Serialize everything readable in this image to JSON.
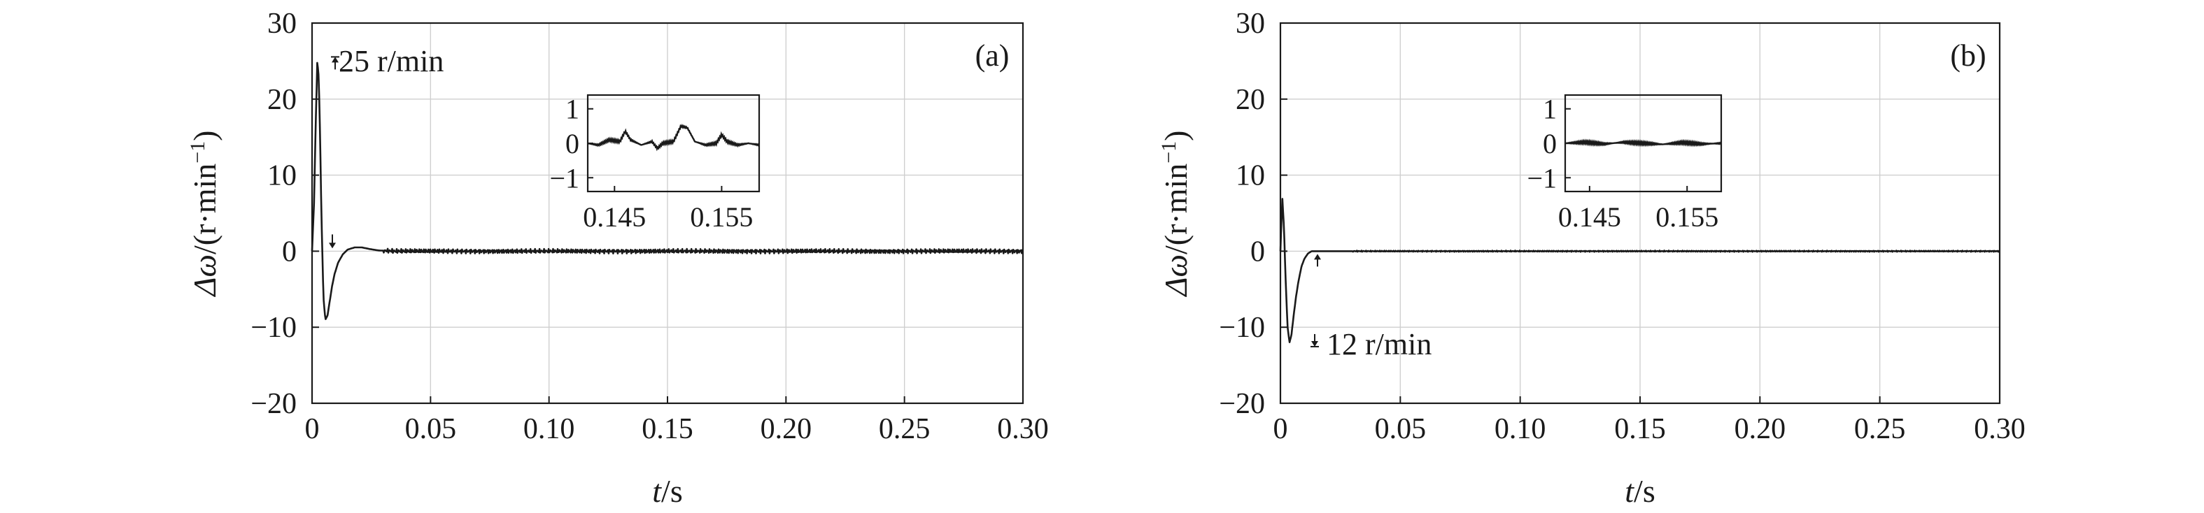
{
  "chart_data": [
    {
      "type": "line",
      "panel_label": "(a)",
      "xlabel_italic": "t",
      "xlabel_unit": "/s",
      "ylabel_symbol": "Δω",
      "ylabel_unit": "/(r·min",
      "ylabel_sup": "−1",
      "ylabel_close": ")",
      "xlim": [
        0,
        0.3
      ],
      "ylim": [
        -20,
        30
      ],
      "x_ticks": [
        "0",
        "0.05",
        "0.10",
        "0.15",
        "0.20",
        "0.25",
        "0.30"
      ],
      "y_ticks": [
        "30",
        "20",
        "10",
        "0",
        "−10",
        "−20"
      ],
      "grid": true,
      "annotation": "25 r/min",
      "series": [
        {
          "x": [
            0,
            0.0008,
            0.0015,
            0.0022,
            0.0028,
            0.0034,
            0.004,
            0.0048,
            0.0056,
            0.0065,
            0.0075,
            0.0085,
            0.0095,
            0.011,
            0.013,
            0.015,
            0.018,
            0.021,
            0.024,
            0.028,
            0.035,
            0.3
          ],
          "y": [
            0,
            6,
            16,
            25,
            23,
            15,
            4,
            -6,
            -9,
            -8.5,
            -6.5,
            -4.5,
            -3,
            -1.5,
            -0.4,
            0.2,
            0.5,
            0.5,
            0.3,
            0.1,
            0,
            0
          ],
          "ripple": 0.3
        }
      ],
      "inset": {
        "xlim": [
          0.1425,
          0.1585
        ],
        "ylim": [
          -1.4,
          1.4
        ],
        "x_ticks": [
          "0.145",
          "0.155"
        ],
        "y_ticks": [
          "1",
          "0",
          "−1"
        ],
        "series": [
          {
            "x": [
              0.1425,
              0.1435,
              0.1445,
              0.1455,
              0.146,
              0.1465,
              0.1475,
              0.1485,
              0.149,
              0.1495,
              0.1505,
              0.1512,
              0.1518,
              0.1525,
              0.1535,
              0.1545,
              0.155,
              0.1555,
              0.1565,
              0.1575,
              0.1585
            ],
            "y": [
              0,
              -0.05,
              0.1,
              0.05,
              0.35,
              0.1,
              -0.05,
              0.05,
              -0.15,
              0.0,
              0.05,
              0.5,
              0.45,
              0.05,
              -0.05,
              0.0,
              0.25,
              0.05,
              -0.05,
              0.0,
              -0.05
            ]
          }
        ]
      }
    },
    {
      "type": "line",
      "panel_label": "(b)",
      "xlabel_italic": "t",
      "xlabel_unit": "/s",
      "ylabel_symbol": "Δω",
      "ylabel_unit": "/(r·min",
      "ylabel_sup": "−1",
      "ylabel_close": ")",
      "xlim": [
        0,
        0.3
      ],
      "ylim": [
        -20,
        30
      ],
      "x_ticks": [
        "0",
        "0.05",
        "0.10",
        "0.15",
        "0.20",
        "0.25",
        "0.30"
      ],
      "y_ticks": [
        "30",
        "20",
        "10",
        "0",
        "−10",
        "−20"
      ],
      "grid": true,
      "annotation": "12 r/min",
      "series": [
        {
          "x": [
            0,
            0.0008,
            0.0015,
            0.0022,
            0.003,
            0.0038,
            0.0046,
            0.0055,
            0.0065,
            0.0075,
            0.0088,
            0.01,
            0.0115,
            0.013,
            0.015,
            0.3
          ],
          "y": [
            0,
            7,
            3,
            -4,
            -10,
            -12,
            -11,
            -8.5,
            -6,
            -4,
            -2,
            -1,
            -0.3,
            0,
            0,
            0
          ],
          "ripple": 0.08
        }
      ],
      "inset": {
        "xlim": [
          0.1425,
          0.1585
        ],
        "ylim": [
          -1.4,
          1.4
        ],
        "x_ticks": [
          "0.145",
          "0.155"
        ],
        "y_ticks": [
          "1",
          "0",
          "−1"
        ],
        "series": [
          {
            "x": [
              0.1425,
              0.1445,
              0.1465,
              0.1485,
              0.1505,
              0.1525,
              0.1545,
              0.1565,
              0.1585
            ],
            "y": [
              0,
              0.03,
              -0.02,
              0.03,
              0,
              -0.03,
              0.02,
              -0.02,
              0
            ]
          }
        ]
      }
    }
  ]
}
